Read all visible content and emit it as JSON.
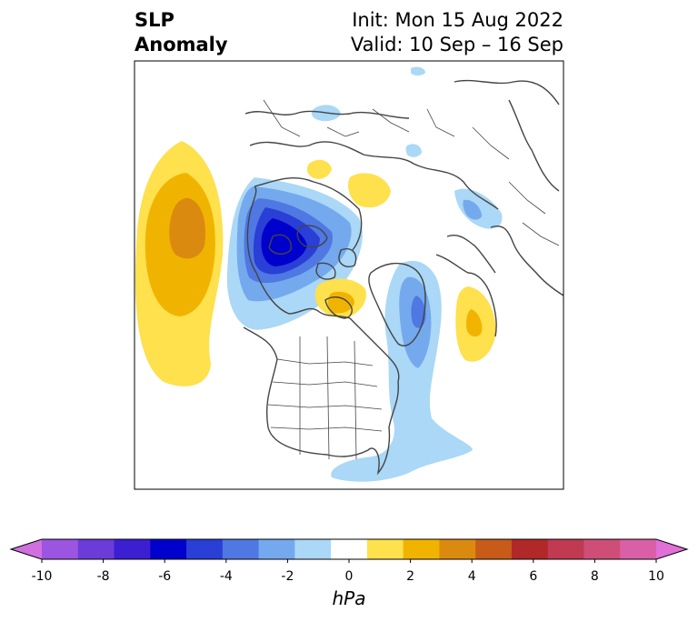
{
  "title": {
    "line1": "SLP",
    "line2": "Anomaly",
    "init": "Init: Mon 15 Aug 2022",
    "valid": "Valid: 10 Sep – 16 Sep"
  },
  "colorbar": {
    "label": "hPa",
    "ticks": [
      "-10",
      "-8",
      "-6",
      "-4",
      "-2",
      "0",
      "2",
      "4",
      "6",
      "8",
      "10"
    ],
    "colors": [
      "#d070e0",
      "#9b55e0",
      "#6b3cd8",
      "#3c1fd0",
      "#0000cc",
      "#2a3fd6",
      "#4f78e2",
      "#74a9ee",
      "#aad8f6",
      "#ffffff",
      "#ffe04d",
      "#f0b400",
      "#db8a10",
      "#c85b18",
      "#b02828",
      "#c03a52",
      "#cf4e78",
      "#d95fa6",
      "#e070d8"
    ]
  },
  "map": {
    "projection": "north-polar-stereographic",
    "field": "sea-level pressure anomaly"
  }
}
